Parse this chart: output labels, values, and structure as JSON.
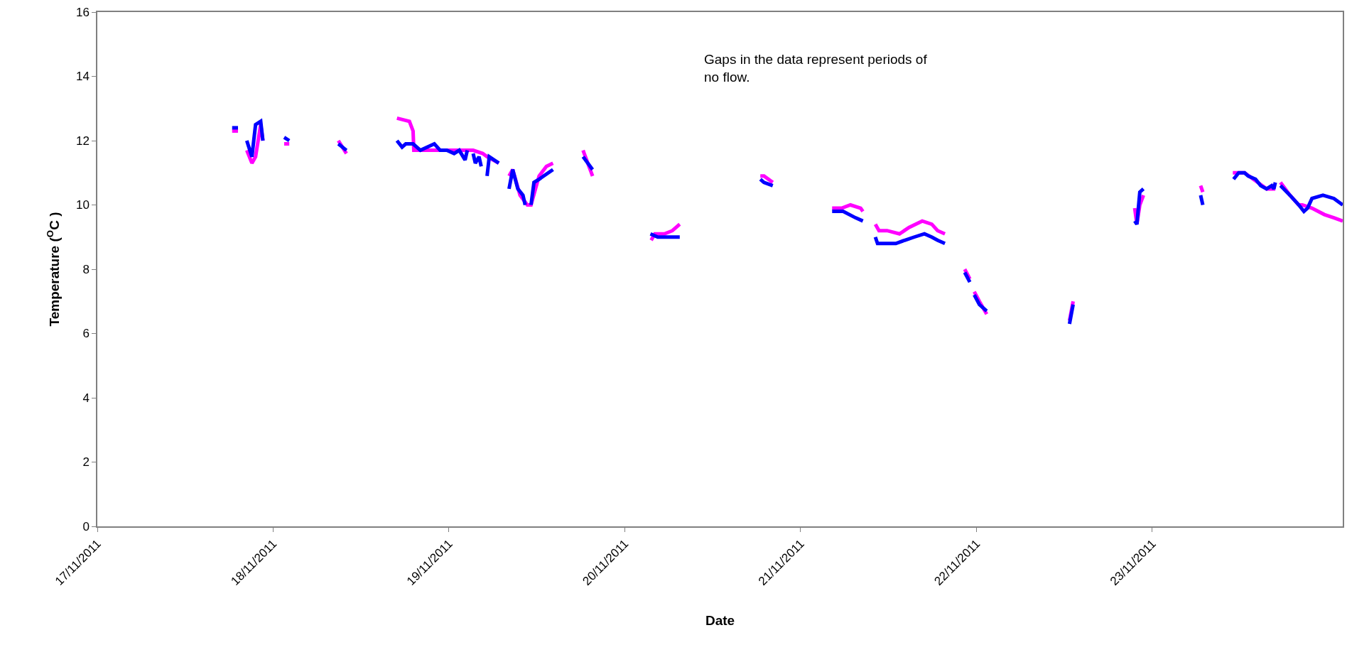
{
  "chart_data": {
    "type": "line",
    "xlabel": "Date",
    "ylabel": "Temperature ($^{O}$C )",
    "annotations": [
      "Gaps in the data represent periods of\nno flow."
    ],
    "xlim": [
      "2011-11-17T00:00",
      "2011-11-24T02:00"
    ],
    "xticks": [
      {
        "value": "2011-11-17",
        "label": "17/11/2011"
      },
      {
        "value": "2011-11-18",
        "label": "18/11/2011"
      },
      {
        "value": "2011-11-19",
        "label": "19/11/2011"
      },
      {
        "value": "2011-11-20",
        "label": "20/11/2011"
      },
      {
        "value": "2011-11-21",
        "label": "21/11/2011"
      },
      {
        "value": "2011-11-22",
        "label": "22/11/2011"
      },
      {
        "value": "2011-11-23",
        "label": "23/11/2011"
      }
    ],
    "ylim": [
      0,
      16
    ],
    "yticks": [
      0,
      2,
      4,
      6,
      8,
      10,
      12,
      14,
      16
    ],
    "grid": false,
    "marker": "none",
    "line_style": "solid",
    "series": [
      {
        "color": "#ff00ff",
        "x": [
          "2011-11-17T18:24",
          "2011-11-17T19:12",
          null,
          "2011-11-17T20:24",
          "2011-11-17T21:06",
          "2011-11-17T21:36",
          "2011-11-17T22:18",
          "2011-11-17T22:36",
          null,
          "2011-11-18T01:30",
          "2011-11-18T02:12",
          null,
          "2011-11-18T08:54",
          "2011-11-18T10:00",
          null,
          "2011-11-18T16:54",
          "2011-11-18T18:36",
          "2011-11-18T19:06",
          "2011-11-18T19:12",
          "2011-11-18T20:06",
          "2011-11-18T22:24",
          "2011-11-19T00:00",
          "2011-11-19T02:18",
          "2011-11-19T03:18",
          "2011-11-19T04:36",
          "2011-11-19T05:12",
          "2011-11-19T06:48",
          null,
          "2011-11-19T08:12",
          "2011-11-19T08:42",
          "2011-11-19T09:42",
          "2011-11-19T10:42",
          "2011-11-19T11:12",
          "2011-11-19T12:18",
          "2011-11-19T13:18",
          "2011-11-19T14:12",
          null,
          "2011-11-19T18:18",
          "2011-11-19T19:36",
          null,
          "2011-11-20T03:36",
          "2011-11-20T04:06",
          "2011-11-20T05:24",
          "2011-11-20T06:30",
          "2011-11-20T07:30",
          null,
          "2011-11-20T18:30",
          "2011-11-20T19:00",
          "2011-11-20T20:12",
          null,
          "2011-11-21T04:18",
          "2011-11-21T05:36",
          "2011-11-21T06:48",
          "2011-11-21T08:12",
          "2011-11-21T08:30",
          null,
          "2011-11-21T10:12",
          "2011-11-21T10:42",
          "2011-11-21T11:48",
          "2011-11-21T13:30",
          "2011-11-21T14:48",
          "2011-11-21T16:36",
          "2011-11-21T17:54",
          "2011-11-21T18:42",
          "2011-11-21T19:42",
          null,
          "2011-11-21T22:24",
          "2011-11-21T23:06",
          null,
          "2011-11-21T23:42",
          "2011-11-22T00:24",
          "2011-11-22T01:24",
          null,
          "2011-11-22T12:42",
          "2011-11-22T13:12",
          null,
          "2011-11-22T21:36",
          "2011-11-22T21:54",
          "2011-11-22T22:18",
          "2011-11-22T22:48",
          null,
          "2011-11-23T06:36",
          "2011-11-23T06:54",
          null,
          "2011-11-23T11:00",
          "2011-11-23T12:36",
          "2011-11-23T14:24",
          "2011-11-23T15:36",
          "2011-11-23T16:48",
          null,
          "2011-11-23T17:30",
          "2011-11-23T18:48",
          "2011-11-23T20:00",
          "2011-11-23T20:30",
          "2011-11-23T21:48",
          "2011-11-23T23:30",
          "2011-11-24T00:48",
          "2011-11-24T02:00"
        ],
        "values": [
          12.3,
          12.3,
          null,
          11.7,
          11.3,
          11.5,
          12.5,
          12.0,
          null,
          11.9,
          11.9,
          null,
          12.0,
          11.6,
          null,
          12.7,
          12.6,
          12.3,
          11.7,
          11.7,
          11.7,
          11.7,
          11.7,
          11.7,
          11.6,
          11.5,
          11.3,
          null,
          10.9,
          11.1,
          10.3,
          10.0,
          10.0,
          10.9,
          11.2,
          11.3,
          null,
          11.7,
          10.9,
          null,
          8.9,
          9.1,
          9.1,
          9.2,
          9.4,
          null,
          10.9,
          10.9,
          10.7,
          null,
          9.9,
          9.9,
          10.0,
          9.9,
          9.8,
          null,
          9.4,
          9.2,
          9.2,
          9.1,
          9.3,
          9.5,
          9.4,
          9.2,
          9.1,
          null,
          8.0,
          7.7,
          null,
          7.3,
          7.0,
          6.6,
          null,
          6.4,
          7.0,
          null,
          9.9,
          9.4,
          10.0,
          10.3,
          null,
          10.6,
          10.4,
          null,
          11.0,
          11.0,
          10.7,
          10.5,
          10.5,
          null,
          10.7,
          10.3,
          10.0,
          10.0,
          9.9,
          9.7,
          9.6,
          9.5
        ]
      },
      {
        "color": "#0000ff",
        "x": [
          "2011-11-17T18:24",
          "2011-11-17T19:12",
          null,
          "2011-11-17T20:24",
          "2011-11-17T21:06",
          "2011-11-17T21:36",
          "2011-11-17T22:18",
          "2011-11-17T22:36",
          null,
          "2011-11-18T01:30",
          "2011-11-18T02:12",
          null,
          "2011-11-18T08:54",
          "2011-11-18T10:00",
          null,
          "2011-11-18T16:54",
          "2011-11-18T17:36",
          "2011-11-18T18:06",
          "2011-11-18T19:06",
          "2011-11-18T20:06",
          "2011-11-18T22:00",
          "2011-11-18T22:48",
          "2011-11-18T23:42",
          "2011-11-19T00:42",
          "2011-11-19T01:24",
          "2011-11-19T02:12",
          "2011-11-19T02:30",
          null,
          "2011-11-19T03:18",
          "2011-11-19T03:36",
          "2011-11-19T04:06",
          "2011-11-19T04:24",
          null,
          "2011-11-19T05:12",
          "2011-11-19T05:30",
          "2011-11-19T06:48",
          null,
          "2011-11-19T08:12",
          "2011-11-19T08:42",
          "2011-11-19T09:24",
          "2011-11-19T10:06",
          "2011-11-19T10:24",
          null,
          "2011-11-19T11:12",
          "2011-11-19T11:36",
          "2011-11-19T12:18",
          "2011-11-19T14:12",
          null,
          "2011-11-19T18:18",
          "2011-11-19T19:36",
          null,
          "2011-11-20T03:30",
          "2011-11-20T04:30",
          "2011-11-20T05:24",
          "2011-11-20T06:30",
          "2011-11-20T07:30",
          null,
          "2011-11-20T18:30",
          "2011-11-20T19:00",
          "2011-11-20T20:12",
          null,
          "2011-11-21T04:18",
          "2011-11-21T05:48",
          "2011-11-21T07:30",
          "2011-11-21T08:30",
          null,
          "2011-11-21T10:12",
          "2011-11-21T10:30",
          "2011-11-21T11:48",
          "2011-11-21T13:00",
          "2011-11-21T14:12",
          "2011-11-21T15:30",
          "2011-11-21T16:54",
          "2011-11-21T17:54",
          "2011-11-21T18:42",
          "2011-11-21T19:42",
          null,
          "2011-11-21T22:24",
          "2011-11-21T23:06",
          null,
          "2011-11-21T23:42",
          "2011-11-22T00:24",
          "2011-11-22T01:24",
          null,
          "2011-11-22T12:42",
          "2011-11-22T13:12",
          null,
          "2011-11-22T21:36",
          "2011-11-22T21:54",
          "2011-11-22T22:18",
          "2011-11-22T22:48",
          null,
          "2011-11-23T06:36",
          "2011-11-23T06:54",
          null,
          "2011-11-23T11:06",
          "2011-11-23T11:48",
          "2011-11-23T12:36",
          "2011-11-23T13:06",
          "2011-11-23T14:06",
          "2011-11-23T14:48",
          "2011-11-23T15:36",
          "2011-11-23T16:18",
          "2011-11-23T16:36",
          "2011-11-23T16:48",
          null,
          "2011-11-23T17:30",
          "2011-11-23T18:48",
          "2011-11-23T20:00",
          "2011-11-23T20:42",
          "2011-11-23T21:12",
          "2011-11-23T21:48",
          "2011-11-23T23:18",
          "2011-11-24T00:48",
          "2011-11-24T02:00"
        ],
        "values": [
          12.4,
          12.4,
          null,
          12.0,
          11.5,
          12.5,
          12.6,
          12.0,
          null,
          12.1,
          12.0,
          null,
          11.9,
          11.7,
          null,
          12.0,
          11.8,
          11.9,
          11.9,
          11.7,
          11.9,
          11.7,
          11.7,
          11.6,
          11.7,
          11.4,
          11.7,
          null,
          11.6,
          11.3,
          11.5,
          11.2,
          null,
          10.9,
          11.5,
          11.3,
          null,
          10.5,
          11.1,
          10.5,
          10.3,
          10.0,
          null,
          10.0,
          10.7,
          10.8,
          11.1,
          null,
          11.5,
          11.1,
          null,
          9.1,
          9.0,
          9.0,
          9.0,
          9.0,
          null,
          10.8,
          10.7,
          10.6,
          null,
          9.8,
          9.8,
          9.6,
          9.5,
          null,
          9.0,
          8.8,
          8.8,
          8.8,
          8.9,
          9.0,
          9.1,
          9.0,
          8.9,
          8.8,
          null,
          7.9,
          7.6,
          null,
          7.2,
          6.9,
          6.7,
          null,
          6.3,
          6.9,
          null,
          9.5,
          9.4,
          10.4,
          10.5,
          null,
          10.3,
          10.0,
          null,
          10.8,
          11.0,
          11.0,
          10.9,
          10.8,
          10.6,
          10.5,
          10.6,
          10.5,
          10.7,
          null,
          10.6,
          10.3,
          10.0,
          9.8,
          9.9,
          10.2,
          10.3,
          10.2,
          10.0
        ]
      }
    ]
  }
}
